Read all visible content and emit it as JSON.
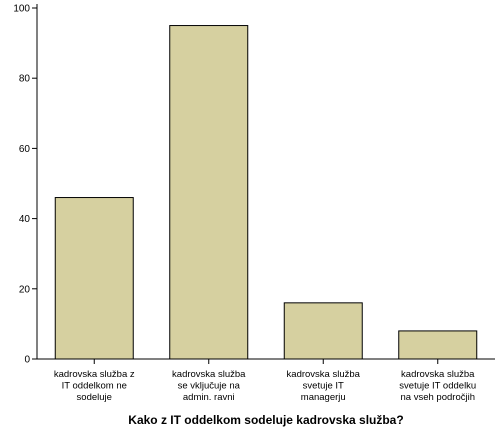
{
  "chart_data": {
    "type": "bar",
    "title": "",
    "xlabel": "Kako z IT oddelkom sodeluje kadrovska služba?",
    "ylabel": "",
    "ylim": [
      0,
      100
    ],
    "yticks": [
      0,
      20,
      40,
      60,
      80,
      100
    ],
    "grid": false,
    "legend": "none",
    "bar_color": "#d6d0a0",
    "bar_edge_color": "#000000",
    "categories": [
      [
        "kadrovska služba z",
        "IT oddelkom ne",
        "sodeluje"
      ],
      [
        "kadrovska služba",
        "se vključuje na",
        "admin. ravni"
      ],
      [
        "kadrovska služba",
        "svetuje IT",
        "managerju"
      ],
      [
        "kadrovska služba",
        "svetuje IT oddelku",
        "na vseh področjih"
      ]
    ],
    "values": [
      46,
      95,
      16,
      8
    ]
  }
}
